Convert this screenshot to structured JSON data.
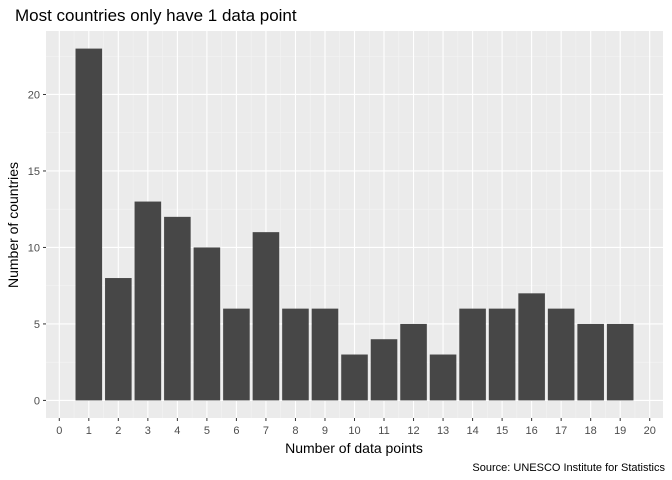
{
  "chart_data": {
    "type": "bar",
    "title": "Most countries only have 1 data point",
    "xlabel": "Number of data points",
    "ylabel": "Number of countries",
    "caption": "Source: UNESCO Institute for Statistics",
    "x_ticks": [
      "0",
      "1",
      "2",
      "3",
      "4",
      "5",
      "6",
      "7",
      "8",
      "9",
      "10",
      "11",
      "12",
      "13",
      "14",
      "15",
      "16",
      "17",
      "18",
      "19",
      "20"
    ],
    "y_ticks": [
      "0",
      "5",
      "10",
      "15",
      "20"
    ],
    "categories": [
      1,
      2,
      3,
      4,
      5,
      6,
      7,
      8,
      9,
      10,
      11,
      12,
      13,
      14,
      15,
      16,
      17,
      18,
      19
    ],
    "values": [
      23,
      8,
      13,
      12,
      10,
      6,
      11,
      6,
      6,
      3,
      4,
      5,
      3,
      6,
      6,
      7,
      6,
      5,
      5
    ],
    "xlim": [
      -0.45,
      20.45
    ],
    "ylim": [
      -1.15,
      24.15
    ],
    "grid": true,
    "legend": "none",
    "colors": {
      "bar": "#474747",
      "panel": "#ebebeb",
      "grid_major": "#ffffff",
      "grid_minor": "#f4f4f4",
      "tick": "#333333"
    }
  }
}
